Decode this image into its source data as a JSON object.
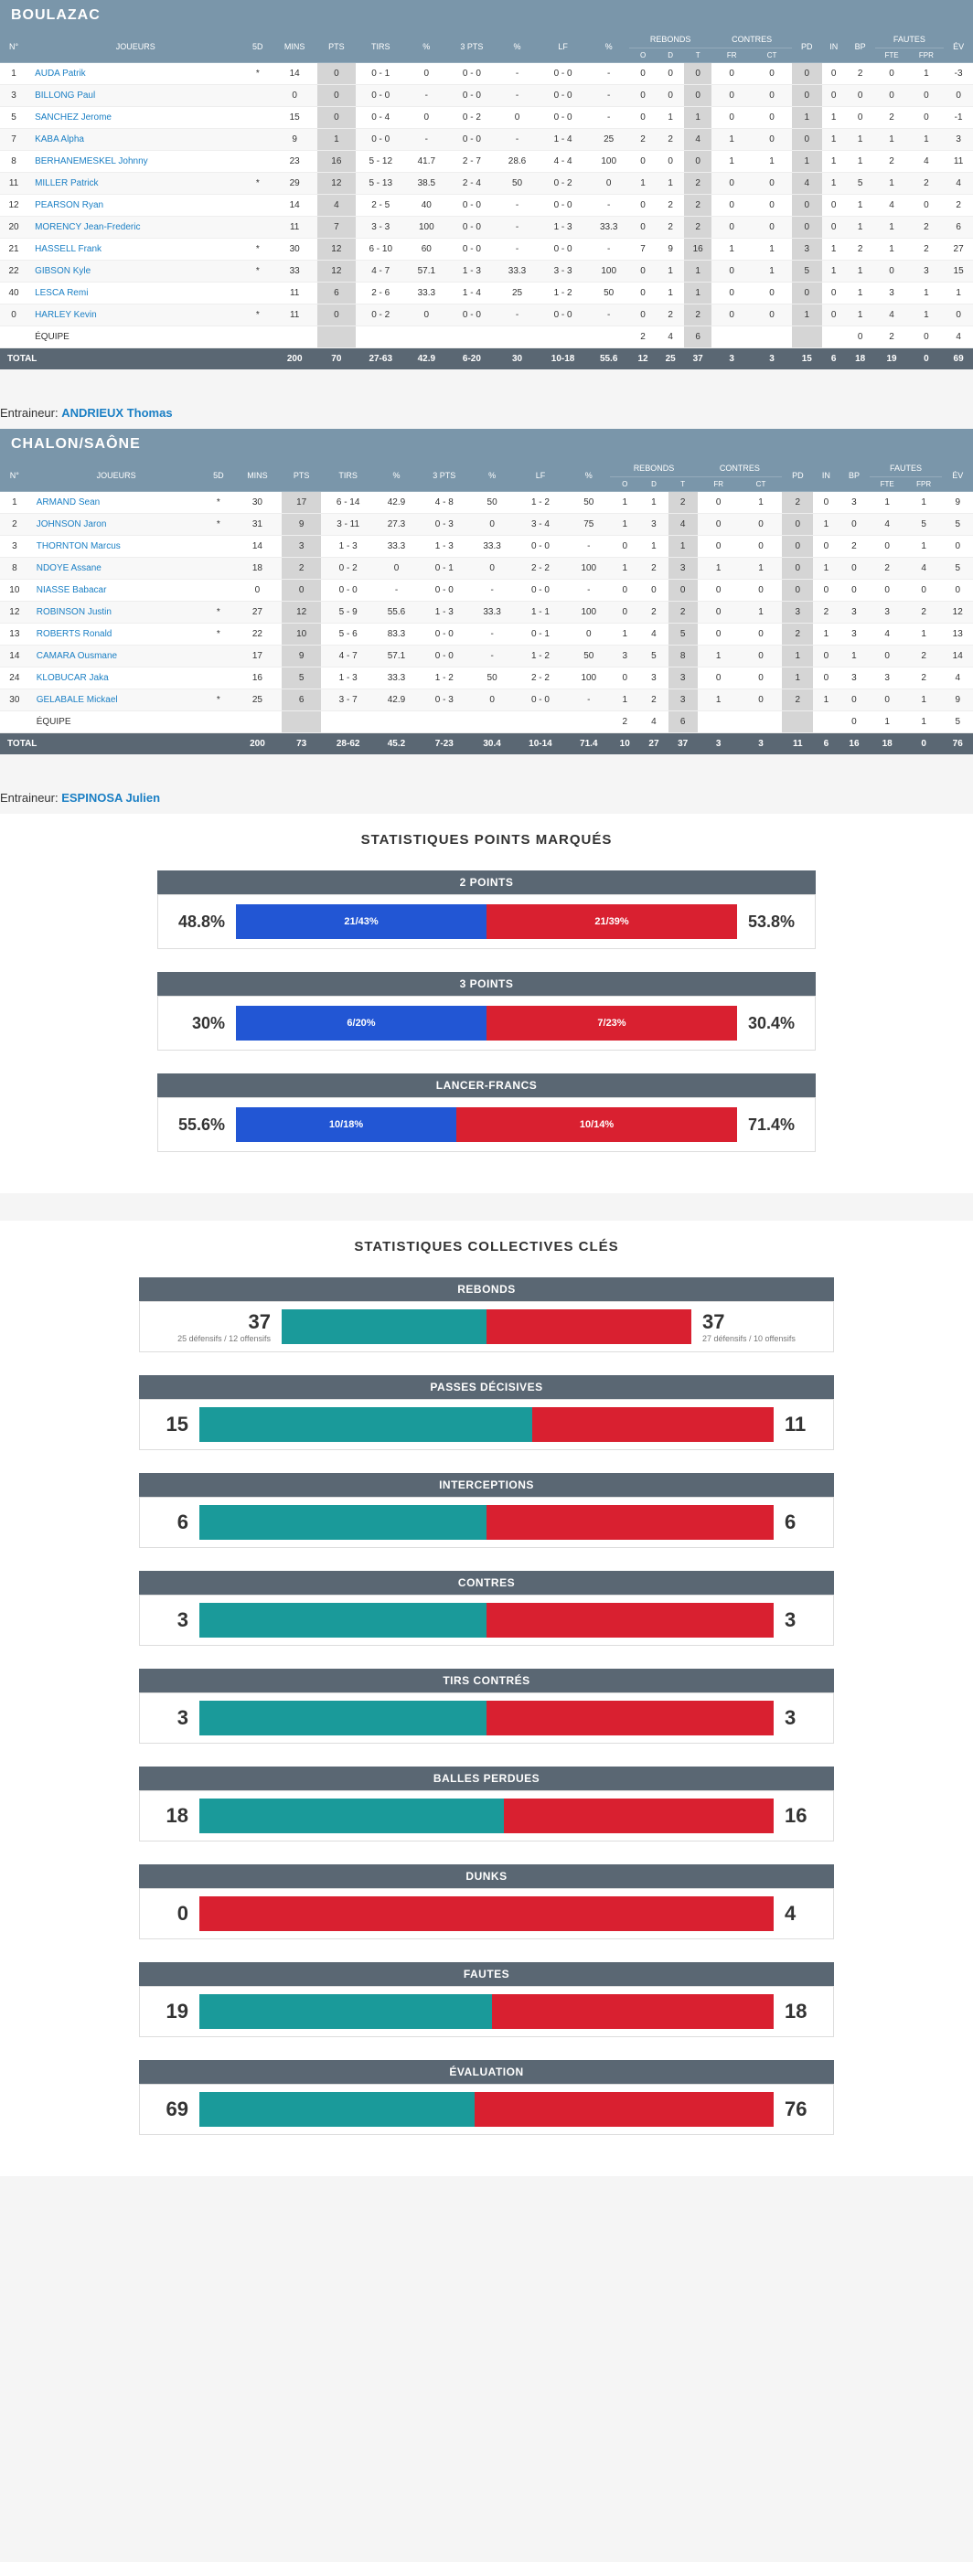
{
  "columns": {
    "top": [
      "N°",
      "JOUEURS",
      "5D",
      "MINS",
      "PTS",
      "TIRS",
      "%",
      "3 PTS",
      "%",
      "LF",
      "%",
      "REBONDS",
      "CONTRES",
      "PD",
      "IN",
      "BP",
      "FAUTES",
      "ÉV"
    ],
    "reb": [
      "O",
      "D",
      "T"
    ],
    "ctr": [
      "FR",
      "CT"
    ],
    "ftes": [
      "FTE",
      "FPR"
    ]
  },
  "teams": [
    {
      "name": "BOULAZAC",
      "coach_label": "Entraineur:",
      "coach": "ANDRIEUX Thomas",
      "players": [
        {
          "n": "1",
          "name": "AUDA Patrik",
          "sd": "*",
          "min": "14",
          "pts": "0",
          "tirs": "0 - 1",
          "pct": "0",
          "p3": "0 - 0",
          "p3p": "-",
          "lf": "0 - 0",
          "lfp": "-",
          "ro": "0",
          "rd": "0",
          "rt": "0",
          "fr": "0",
          "ct": "0",
          "pd": "0",
          "in": "0",
          "bp": "2",
          "fte": "0",
          "fpr": "1",
          "ev": "-3"
        },
        {
          "n": "3",
          "name": "BILLONG Paul",
          "sd": "",
          "min": "0",
          "pts": "0",
          "tirs": "0 - 0",
          "pct": "-",
          "p3": "0 - 0",
          "p3p": "-",
          "lf": "0 - 0",
          "lfp": "-",
          "ro": "0",
          "rd": "0",
          "rt": "0",
          "fr": "0",
          "ct": "0",
          "pd": "0",
          "in": "0",
          "bp": "0",
          "fte": "0",
          "fpr": "0",
          "ev": "0"
        },
        {
          "n": "5",
          "name": "SANCHEZ Jerome",
          "sd": "",
          "min": "15",
          "pts": "0",
          "tirs": "0 - 4",
          "pct": "0",
          "p3": "0 - 2",
          "p3p": "0",
          "lf": "0 - 0",
          "lfp": "-",
          "ro": "0",
          "rd": "1",
          "rt": "1",
          "fr": "0",
          "ct": "0",
          "pd": "1",
          "in": "1",
          "bp": "0",
          "fte": "2",
          "fpr": "0",
          "ev": "-1"
        },
        {
          "n": "7",
          "name": "KABA Alpha",
          "sd": "",
          "min": "9",
          "pts": "1",
          "tirs": "0 - 0",
          "pct": "-",
          "p3": "0 - 0",
          "p3p": "-",
          "lf": "1 - 4",
          "lfp": "25",
          "ro": "2",
          "rd": "2",
          "rt": "4",
          "fr": "1",
          "ct": "0",
          "pd": "0",
          "in": "1",
          "bp": "1",
          "fte": "1",
          "fpr": "1",
          "ev": "3"
        },
        {
          "n": "8",
          "name": "BERHANEMESKEL Johnny",
          "sd": "",
          "min": "23",
          "pts": "16",
          "tirs": "5 - 12",
          "pct": "41.7",
          "p3": "2 - 7",
          "p3p": "28.6",
          "lf": "4 - 4",
          "lfp": "100",
          "ro": "0",
          "rd": "0",
          "rt": "0",
          "fr": "1",
          "ct": "1",
          "pd": "1",
          "in": "1",
          "bp": "1",
          "fte": "2",
          "fpr": "4",
          "ev": "11"
        },
        {
          "n": "11",
          "name": "MILLER Patrick",
          "sd": "*",
          "min": "29",
          "pts": "12",
          "tirs": "5 - 13",
          "pct": "38.5",
          "p3": "2 - 4",
          "p3p": "50",
          "lf": "0 - 2",
          "lfp": "0",
          "ro": "1",
          "rd": "1",
          "rt": "2",
          "fr": "0",
          "ct": "0",
          "pd": "4",
          "in": "1",
          "bp": "5",
          "fte": "1",
          "fpr": "2",
          "ev": "4"
        },
        {
          "n": "12",
          "name": "PEARSON Ryan",
          "sd": "",
          "min": "14",
          "pts": "4",
          "tirs": "2 - 5",
          "pct": "40",
          "p3": "0 - 0",
          "p3p": "-",
          "lf": "0 - 0",
          "lfp": "-",
          "ro": "0",
          "rd": "2",
          "rt": "2",
          "fr": "0",
          "ct": "0",
          "pd": "0",
          "in": "0",
          "bp": "1",
          "fte": "4",
          "fpr": "0",
          "ev": "2"
        },
        {
          "n": "20",
          "name": "MORENCY Jean-Frederic",
          "sd": "",
          "min": "11",
          "pts": "7",
          "tirs": "3 - 3",
          "pct": "100",
          "p3": "0 - 0",
          "p3p": "-",
          "lf": "1 - 3",
          "lfp": "33.3",
          "ro": "0",
          "rd": "2",
          "rt": "2",
          "fr": "0",
          "ct": "0",
          "pd": "0",
          "in": "0",
          "bp": "1",
          "fte": "1",
          "fpr": "2",
          "ev": "6"
        },
        {
          "n": "21",
          "name": "HASSELL Frank",
          "sd": "*",
          "min": "30",
          "pts": "12",
          "tirs": "6 - 10",
          "pct": "60",
          "p3": "0 - 0",
          "p3p": "-",
          "lf": "0 - 0",
          "lfp": "-",
          "ro": "7",
          "rd": "9",
          "rt": "16",
          "fr": "1",
          "ct": "1",
          "pd": "3",
          "in": "1",
          "bp": "2",
          "fte": "1",
          "fpr": "2",
          "ev": "27"
        },
        {
          "n": "22",
          "name": "GIBSON Kyle",
          "sd": "*",
          "min": "33",
          "pts": "12",
          "tirs": "4 - 7",
          "pct": "57.1",
          "p3": "1 - 3",
          "p3p": "33.3",
          "lf": "3 - 3",
          "lfp": "100",
          "ro": "0",
          "rd": "1",
          "rt": "1",
          "fr": "0",
          "ct": "1",
          "pd": "5",
          "in": "1",
          "bp": "1",
          "fte": "0",
          "fpr": "3",
          "ev": "15"
        },
        {
          "n": "40",
          "name": "LESCA Remi",
          "sd": "",
          "min": "11",
          "pts": "6",
          "tirs": "2 - 6",
          "pct": "33.3",
          "p3": "1 - 4",
          "p3p": "25",
          "lf": "1 - 2",
          "lfp": "50",
          "ro": "0",
          "rd": "1",
          "rt": "1",
          "fr": "0",
          "ct": "0",
          "pd": "0",
          "in": "0",
          "bp": "1",
          "fte": "3",
          "fpr": "1",
          "ev": "1"
        },
        {
          "n": "0",
          "name": "HARLEY Kevin",
          "sd": "*",
          "min": "11",
          "pts": "0",
          "tirs": "0 - 2",
          "pct": "0",
          "p3": "0 - 0",
          "p3p": "-",
          "lf": "0 - 0",
          "lfp": "-",
          "ro": "0",
          "rd": "2",
          "rt": "2",
          "fr": "0",
          "ct": "0",
          "pd": "1",
          "in": "0",
          "bp": "1",
          "fte": "4",
          "fpr": "1",
          "ev": "0"
        },
        {
          "n": "",
          "name": "ÉQUIPE",
          "sd": "",
          "min": "",
          "pts": "",
          "tirs": "",
          "pct": "",
          "p3": "",
          "p3p": "",
          "lf": "",
          "lfp": "",
          "ro": "2",
          "rd": "4",
          "rt": "6",
          "fr": "",
          "ct": "",
          "pd": "",
          "in": "",
          "bp": "0",
          "fte": "2",
          "fpr": "0",
          "ev": "0",
          "plain": true,
          "ev2": "4"
        }
      ],
      "total": {
        "label": "TOTAL",
        "min": "200",
        "pts": "70",
        "tirs": "27-63",
        "pct": "42.9",
        "p3": "6-20",
        "p3p": "30",
        "lf": "10-18",
        "lfp": "55.6",
        "ro": "12",
        "rd": "25",
        "rt": "37",
        "fr": "3",
        "ct": "3",
        "pd": "15",
        "in": "6",
        "bp": "18",
        "fte": "19",
        "fpr": "0",
        "ev": "69"
      }
    },
    {
      "name": "CHALON/SAÔNE",
      "coach_label": "Entraineur:",
      "coach": "ESPINOSA Julien",
      "players": [
        {
          "n": "1",
          "name": "ARMAND Sean",
          "sd": "*",
          "min": "30",
          "pts": "17",
          "tirs": "6 - 14",
          "pct": "42.9",
          "p3": "4 - 8",
          "p3p": "50",
          "lf": "1 - 2",
          "lfp": "50",
          "ro": "1",
          "rd": "1",
          "rt": "2",
          "fr": "0",
          "ct": "1",
          "pd": "2",
          "in": "0",
          "bp": "3",
          "fte": "1",
          "fpr": "1",
          "ev": "9"
        },
        {
          "n": "2",
          "name": "JOHNSON Jaron",
          "sd": "*",
          "min": "31",
          "pts": "9",
          "tirs": "3 - 11",
          "pct": "27.3",
          "p3": "0 - 3",
          "p3p": "0",
          "lf": "3 - 4",
          "lfp": "75",
          "ro": "1",
          "rd": "3",
          "rt": "4",
          "fr": "0",
          "ct": "0",
          "pd": "0",
          "in": "1",
          "bp": "0",
          "fte": "4",
          "fpr": "5",
          "ev": "5"
        },
        {
          "n": "3",
          "name": "THORNTON Marcus",
          "sd": "",
          "min": "14",
          "pts": "3",
          "tirs": "1 - 3",
          "pct": "33.3",
          "p3": "1 - 3",
          "p3p": "33.3",
          "lf": "0 - 0",
          "lfp": "-",
          "ro": "0",
          "rd": "1",
          "rt": "1",
          "fr": "0",
          "ct": "0",
          "pd": "0",
          "in": "0",
          "bp": "2",
          "fte": "0",
          "fpr": "1",
          "ev": "0"
        },
        {
          "n": "8",
          "name": "NDOYE Assane",
          "sd": "",
          "min": "18",
          "pts": "2",
          "tirs": "0 - 2",
          "pct": "0",
          "p3": "0 - 1",
          "p3p": "0",
          "lf": "2 - 2",
          "lfp": "100",
          "ro": "1",
          "rd": "2",
          "rt": "3",
          "fr": "1",
          "ct": "1",
          "pd": "0",
          "in": "1",
          "bp": "0",
          "fte": "2",
          "fpr": "4",
          "ev": "5"
        },
        {
          "n": "10",
          "name": "NIASSE Babacar",
          "sd": "",
          "min": "0",
          "pts": "0",
          "tirs": "0 - 0",
          "pct": "-",
          "p3": "0 - 0",
          "p3p": "-",
          "lf": "0 - 0",
          "lfp": "-",
          "ro": "0",
          "rd": "0",
          "rt": "0",
          "fr": "0",
          "ct": "0",
          "pd": "0",
          "in": "0",
          "bp": "0",
          "fte": "0",
          "fpr": "0",
          "ev": "0"
        },
        {
          "n": "12",
          "name": "ROBINSON Justin",
          "sd": "*",
          "min": "27",
          "pts": "12",
          "tirs": "5 - 9",
          "pct": "55.6",
          "p3": "1 - 3",
          "p3p": "33.3",
          "lf": "1 - 1",
          "lfp": "100",
          "ro": "0",
          "rd": "2",
          "rt": "2",
          "fr": "0",
          "ct": "1",
          "pd": "3",
          "in": "2",
          "bp": "3",
          "fte": "3",
          "fpr": "2",
          "ev": "12"
        },
        {
          "n": "13",
          "name": "ROBERTS Ronald",
          "sd": "*",
          "min": "22",
          "pts": "10",
          "tirs": "5 - 6",
          "pct": "83.3",
          "p3": "0 - 0",
          "p3p": "-",
          "lf": "0 - 1",
          "lfp": "0",
          "ro": "1",
          "rd": "4",
          "rt": "5",
          "fr": "0",
          "ct": "0",
          "pd": "2",
          "in": "1",
          "bp": "3",
          "fte": "4",
          "fpr": "1",
          "ev": "13"
        },
        {
          "n": "14",
          "name": "CAMARA Ousmane",
          "sd": "",
          "min": "17",
          "pts": "9",
          "tirs": "4 - 7",
          "pct": "57.1",
          "p3": "0 - 0",
          "p3p": "-",
          "lf": "1 - 2",
          "lfp": "50",
          "ro": "3",
          "rd": "5",
          "rt": "8",
          "fr": "1",
          "ct": "0",
          "pd": "1",
          "in": "0",
          "bp": "1",
          "fte": "0",
          "fpr": "2",
          "ev": "14"
        },
        {
          "n": "24",
          "name": "KLOBUCAR Jaka",
          "sd": "",
          "min": "16",
          "pts": "5",
          "tirs": "1 - 3",
          "pct": "33.3",
          "p3": "1 - 2",
          "p3p": "50",
          "lf": "2 - 2",
          "lfp": "100",
          "ro": "0",
          "rd": "3",
          "rt": "3",
          "fr": "0",
          "ct": "0",
          "pd": "1",
          "in": "0",
          "bp": "3",
          "fte": "3",
          "fpr": "2",
          "ev": "4"
        },
        {
          "n": "30",
          "name": "GELABALE Mickael",
          "sd": "*",
          "min": "25",
          "pts": "6",
          "tirs": "3 - 7",
          "pct": "42.9",
          "p3": "0 - 3",
          "p3p": "0",
          "lf": "0 - 0",
          "lfp": "-",
          "ro": "1",
          "rd": "2",
          "rt": "3",
          "fr": "1",
          "ct": "0",
          "pd": "2",
          "in": "1",
          "bp": "0",
          "fte": "0",
          "fpr": "1",
          "ev": "9"
        },
        {
          "n": "",
          "name": "ÉQUIPE",
          "sd": "",
          "min": "",
          "pts": "",
          "tirs": "",
          "pct": "",
          "p3": "",
          "p3p": "",
          "lf": "",
          "lfp": "",
          "ro": "2",
          "rd": "4",
          "rt": "6",
          "fr": "",
          "ct": "",
          "pd": "",
          "in": "",
          "bp": "0",
          "fte": "1",
          "fpr": "1",
          "ev": "0",
          "plain": true,
          "ev2": "5"
        }
      ],
      "total": {
        "label": "TOTAL",
        "min": "200",
        "pts": "73",
        "tirs": "28-62",
        "pct": "45.2",
        "p3": "7-23",
        "p3p": "30.4",
        "lf": "10-14",
        "lfp": "71.4",
        "ro": "10",
        "rd": "27",
        "rt": "37",
        "fr": "3",
        "ct": "3",
        "pd": "11",
        "in": "6",
        "bp": "16",
        "fte": "18",
        "fpr": "0",
        "ev": "76"
      }
    }
  ],
  "pointsStats": {
    "title": "STATISTIQUES POINTS MARQUÉS",
    "items": [
      {
        "label": "2 POINTS",
        "l_pct": "48.8%",
        "l_txt": "21/43%",
        "r_txt": "21/39%",
        "r_pct": "53.8%",
        "lw": 50,
        "rw": 50
      },
      {
        "label": "3 POINTS",
        "l_pct": "30%",
        "l_txt": "6/20%",
        "r_txt": "7/23%",
        "r_pct": "30.4%",
        "lw": 50,
        "rw": 50
      },
      {
        "label": "LANCER-FRANCS",
        "l_pct": "55.6%",
        "l_txt": "10/18%",
        "r_txt": "10/14%",
        "r_pct": "71.4%",
        "lw": 44,
        "rw": 56
      }
    ]
  },
  "collStats": {
    "title": "STATISTIQUES COLLECTIVES CLÉS",
    "items": [
      {
        "label": "REBONDS",
        "l": "37",
        "r": "37",
        "l_sub": "25 défensifs / 12 offensifs",
        "r_sub": "27 défensifs / 10 offensifs",
        "lw": 50,
        "rw": 50
      },
      {
        "label": "PASSES DÉCISIVES",
        "l": "15",
        "r": "11",
        "lw": 58,
        "rw": 42
      },
      {
        "label": "INTERCEPTIONS",
        "l": "6",
        "r": "6",
        "lw": 50,
        "rw": 50
      },
      {
        "label": "CONTRES",
        "l": "3",
        "r": "3",
        "lw": 50,
        "rw": 50
      },
      {
        "label": "TIRS CONTRÉS",
        "l": "3",
        "r": "3",
        "lw": 50,
        "rw": 50
      },
      {
        "label": "BALLES PERDUES",
        "l": "18",
        "r": "16",
        "lw": 53,
        "rw": 47
      },
      {
        "label": "DUNKS",
        "l": "0",
        "r": "4",
        "lw": 0,
        "rw": 100
      },
      {
        "label": "FAUTES",
        "l": "19",
        "r": "18",
        "lw": 51,
        "rw": 49
      },
      {
        "label": "ÉVALUATION",
        "l": "69",
        "r": "76",
        "lw": 48,
        "rw": 52
      }
    ]
  }
}
